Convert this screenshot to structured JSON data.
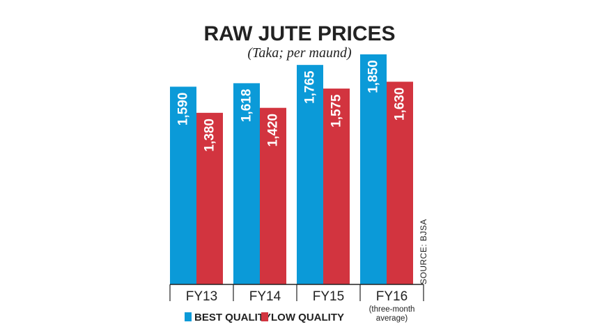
{
  "chart_data": {
    "type": "bar",
    "title": "RAW JUTE PRICES",
    "subtitle": "(Taka; per maund)",
    "categories": [
      "FY13",
      "FY14",
      "FY15",
      "FY16"
    ],
    "category_notes": [
      "",
      "",
      "",
      "(three-month average)"
    ],
    "category_note_lines": [
      "(three-month",
      "average)"
    ],
    "series": [
      {
        "name": "BEST QUALITY",
        "color": "#0b9ad8",
        "values": [
          1590,
          1618,
          1765,
          1850
        ],
        "labels": [
          "1,590",
          "1,618",
          "1,765",
          "1,850"
        ]
      },
      {
        "name": "LOW QUALITY",
        "color": "#d2343f",
        "values": [
          1380,
          1420,
          1575,
          1630
        ],
        "labels": [
          "1,380",
          "1,420",
          "1,575",
          "1,630"
        ]
      }
    ],
    "ylim": [
      0,
      1850
    ],
    "source": "SOURCE: BJSA",
    "grid": false,
    "legend_position": "bottom"
  }
}
